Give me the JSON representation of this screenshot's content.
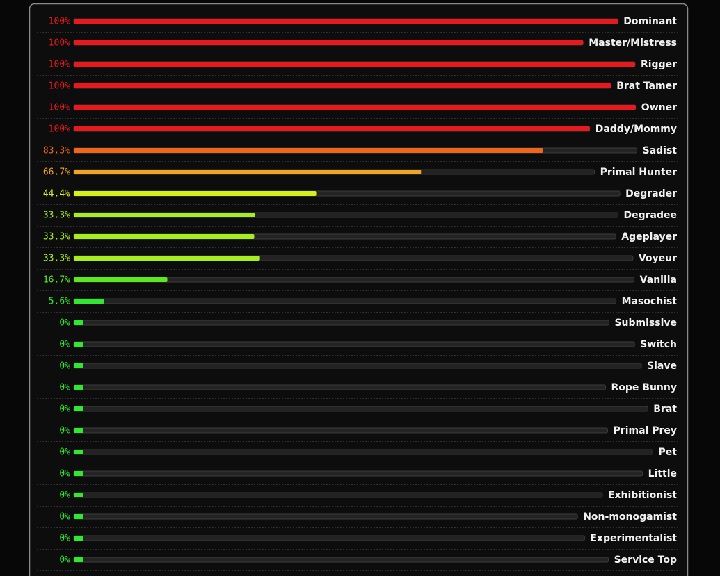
{
  "chart_data": {
    "type": "bar",
    "categories": [
      "Dominant",
      "Master/Mistress",
      "Rigger",
      "Brat Tamer",
      "Owner",
      "Daddy/Mommy",
      "Sadist",
      "Primal Hunter",
      "Degrader",
      "Degradee",
      "Ageplayer",
      "Voyeur",
      "Vanilla",
      "Masochist",
      "Submissive",
      "Switch",
      "Slave",
      "Rope Bunny",
      "Brat",
      "Primal Prey",
      "Pet",
      "Little",
      "Exhibitionist",
      "Non-monogamist",
      "Experimentalist",
      "Service Top"
    ],
    "values": [
      100,
      100,
      100,
      100,
      100,
      100,
      83.3,
      66.7,
      44.4,
      33.3,
      33.3,
      33.3,
      16.7,
      5.6,
      0,
      0,
      0,
      0,
      0,
      0,
      0,
      0,
      0,
      0,
      0,
      0
    ],
    "value_labels": [
      "100%",
      "100%",
      "100%",
      "100%",
      "100%",
      "100%",
      "83.3%",
      "66.7%",
      "44.4%",
      "33.3%",
      "33.3%",
      "33.3%",
      "16.7%",
      "5.6%",
      "0%",
      "0%",
      "0%",
      "0%",
      "0%",
      "0%",
      "0%",
      "0%",
      "0%",
      "0%",
      "0%",
      "0%"
    ],
    "colors": [
      "#e8191c",
      "#e8191c",
      "#e8191c",
      "#e8191c",
      "#e8191c",
      "#e8191c",
      "#f0661d",
      "#f0a524",
      "#d6f01a",
      "#a6ee1c",
      "#a6ee1c",
      "#a6ee1c",
      "#5ce81c",
      "#30e830",
      "#30e830",
      "#30e830",
      "#30e830",
      "#30e830",
      "#30e830",
      "#30e830",
      "#30e830",
      "#30e830",
      "#30e830",
      "#30e830",
      "#30e830",
      "#30e830"
    ],
    "xlim": [
      0,
      100
    ]
  }
}
